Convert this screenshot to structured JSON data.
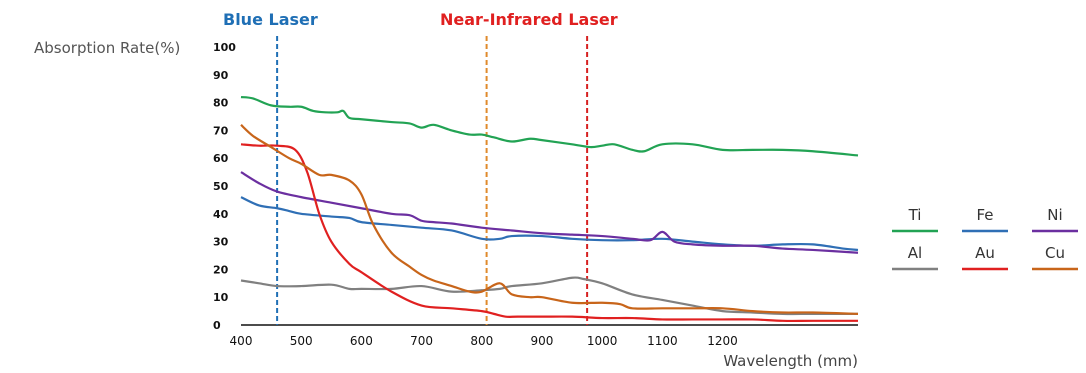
{
  "chart_data": {
    "type": "line",
    "ylabel": "Absorption Rate(%)",
    "xlabel": "Wavelength (mm)",
    "xlim": [
      400,
      1425
    ],
    "ylim": [
      0,
      100
    ],
    "xticks": [
      400,
      500,
      600,
      700,
      800,
      900,
      1000,
      1100,
      1200
    ],
    "yticks": [
      0,
      10,
      20,
      30,
      40,
      50,
      60,
      70,
      80,
      90,
      100
    ],
    "grid": false,
    "legend_position": "right",
    "annotations": [
      {
        "text": "Blue Laser",
        "x": 460,
        "color": "#1f6fb5"
      },
      {
        "text": "Near-Infrared Laser",
        "x": 808,
        "color": "#e08a2c"
      },
      {
        "text": "",
        "x": 975,
        "color": "#d62020"
      }
    ],
    "annotation_label": {
      "text": "Near-Infrared Laser",
      "color": "#e02020"
    },
    "series": [
      {
        "name": "Ti",
        "color": "#22a354",
        "x": [
          400,
          420,
          450,
          480,
          500,
          520,
          540,
          560,
          570,
          580,
          600,
          650,
          680,
          700,
          720,
          750,
          780,
          800,
          820,
          850,
          880,
          900,
          950,
          980,
          1000,
          1020,
          1050,
          1070,
          1100,
          1150,
          1200,
          1250,
          1300,
          1350,
          1425
        ],
        "y": [
          82,
          81.5,
          79,
          78.5,
          78.5,
          77,
          76.5,
          76.5,
          77,
          74.5,
          74,
          73,
          72.5,
          71,
          72,
          70,
          68.5,
          68.5,
          67.5,
          66,
          67,
          66.5,
          65,
          64,
          64.5,
          65,
          63,
          62.5,
          65,
          65,
          63,
          63,
          63,
          62.5,
          61
        ]
      },
      {
        "name": "Fe",
        "color": "#2f6fb5",
        "x": [
          400,
          430,
          460,
          480,
          500,
          550,
          580,
          600,
          650,
          700,
          750,
          800,
          830,
          850,
          900,
          950,
          1000,
          1050,
          1100,
          1150,
          1200,
          1250,
          1300,
          1350,
          1400,
          1425
        ],
        "y": [
          46,
          43,
          42,
          41,
          40,
          39,
          38.5,
          37,
          36,
          35,
          34,
          31,
          31,
          32,
          32,
          31,
          30.5,
          30.5,
          31,
          30,
          29,
          28.5,
          29,
          29,
          27.5,
          27
        ]
      },
      {
        "name": "Ni",
        "color": "#6b2fa0",
        "x": [
          400,
          430,
          460,
          500,
          550,
          600,
          650,
          680,
          700,
          720,
          750,
          800,
          850,
          900,
          950,
          1000,
          1050,
          1080,
          1100,
          1120,
          1150,
          1200,
          1250,
          1300,
          1350,
          1425
        ],
        "y": [
          55,
          51,
          48,
          46,
          44,
          42,
          40,
          39.5,
          37.5,
          37,
          36.5,
          35,
          34,
          33,
          32.5,
          32,
          31,
          30.5,
          33.5,
          30,
          29,
          28.5,
          28.5,
          27.5,
          27,
          26
        ]
      },
      {
        "name": "Al",
        "color": "#808080",
        "x": [
          400,
          430,
          460,
          500,
          550,
          580,
          600,
          650,
          700,
          750,
          800,
          830,
          850,
          900,
          950,
          970,
          1000,
          1050,
          1100,
          1150,
          1200,
          1250,
          1300,
          1350,
          1425
        ],
        "y": [
          16,
          15,
          14,
          14,
          14.5,
          13,
          13,
          13,
          14,
          12,
          12.5,
          13,
          14,
          15,
          17,
          16.5,
          15,
          11,
          9,
          7,
          5,
          4.5,
          4,
          4,
          4
        ]
      },
      {
        "name": "Au",
        "color": "#e02020",
        "x": [
          400,
          430,
          460,
          490,
          510,
          530,
          550,
          580,
          600,
          650,
          700,
          750,
          800,
          820,
          840,
          860,
          900,
          950,
          1000,
          1050,
          1100,
          1150,
          1200,
          1250,
          1300,
          1350,
          1425
        ],
        "y": [
          65,
          64.5,
          64.5,
          63,
          55,
          40,
          30,
          22,
          19,
          12,
          7,
          6,
          5,
          4,
          3,
          3,
          3,
          3,
          2.5,
          2.5,
          2,
          2,
          2,
          2,
          1.5,
          1.5,
          1.5
        ]
      },
      {
        "name": "Cu",
        "color": "#c8651a",
        "x": [
          400,
          420,
          450,
          480,
          500,
          530,
          550,
          580,
          600,
          620,
          650,
          680,
          700,
          720,
          750,
          780,
          800,
          830,
          850,
          880,
          900,
          950,
          1000,
          1030,
          1050,
          1100,
          1150,
          1200,
          1250,
          1300,
          1350,
          1425
        ],
        "y": [
          72,
          68,
          64,
          60,
          58,
          54,
          54,
          52,
          47,
          36,
          26,
          21,
          18,
          16,
          14,
          12,
          12,
          15,
          11,
          10,
          10,
          8,
          8,
          7.5,
          6,
          6,
          6,
          6,
          5,
          4.5,
          4.5,
          4
        ]
      }
    ]
  }
}
